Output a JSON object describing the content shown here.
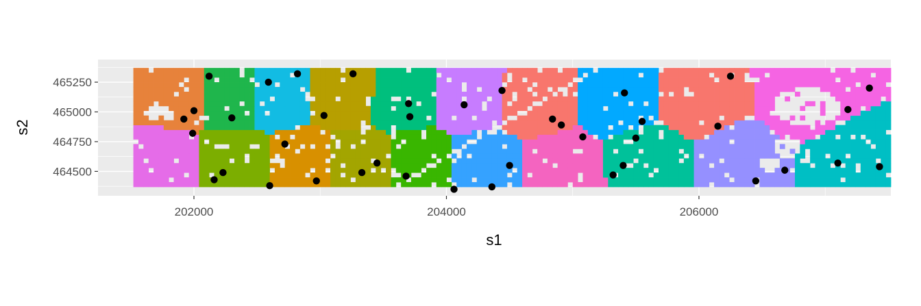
{
  "chart_data": {
    "type": "scatter",
    "title": "",
    "xlabel": "s1",
    "ylabel": "s2",
    "xlim": [
      201240,
      207520
    ],
    "ylim": [
      464295,
      465440
    ],
    "x_ticks": [
      202000,
      204000,
      206000
    ],
    "x_tick_labels": [
      "202000",
      "204000",
      "206000"
    ],
    "y_ticks": [
      464500,
      464750,
      465000,
      465250
    ],
    "y_tick_labels": [
      "464500",
      "464750",
      "465000",
      "465250"
    ],
    "panel_background": "#ebebeb",
    "grid": true,
    "legend": "none",
    "raster_extent": {
      "x": [
        201520,
        207520
      ],
      "y": [
        464370,
        465340
      ]
    },
    "cell_size": 40,
    "point_color": "#000000",
    "zones": [
      {
        "cx": 201880,
        "cy": 465160,
        "color": "#E7823B"
      },
      {
        "cx": 202280,
        "cy": 465140,
        "color": "#1FB64C"
      },
      {
        "cx": 202680,
        "cy": 465160,
        "color": "#12BCE3"
      },
      {
        "cx": 203180,
        "cy": 465160,
        "color": "#B79F00"
      },
      {
        "cx": 203660,
        "cy": 465140,
        "color": "#00BF7D"
      },
      {
        "cx": 204180,
        "cy": 465120,
        "color": "#C77CFF"
      },
      {
        "cx": 204700,
        "cy": 465080,
        "color": "#F8766D"
      },
      {
        "cx": 205380,
        "cy": 465120,
        "color": "#02A9FF"
      },
      {
        "cx": 206000,
        "cy": 465100,
        "color": "#F8766D"
      },
      {
        "cx": 206850,
        "cy": 465120,
        "color": "#F564E3"
      },
      {
        "cx": 201750,
        "cy": 464560,
        "color": "#E56CE8"
      },
      {
        "cx": 202330,
        "cy": 464570,
        "color": "#7CAE00"
      },
      {
        "cx": 202840,
        "cy": 464560,
        "color": "#D89000"
      },
      {
        "cx": 203300,
        "cy": 464560,
        "color": "#A3A500"
      },
      {
        "cx": 203780,
        "cy": 464560,
        "color": "#39B600"
      },
      {
        "cx": 204300,
        "cy": 464560,
        "color": "#35A2FF"
      },
      {
        "cx": 204900,
        "cy": 464540,
        "color": "#F464C0"
      },
      {
        "cx": 205600,
        "cy": 464590,
        "color": "#00C19A"
      },
      {
        "cx": 206300,
        "cy": 464580,
        "color": "#9590FF"
      },
      {
        "cx": 207200,
        "cy": 464580,
        "color": "#00BFC4"
      }
    ],
    "points": [
      [
        202120,
        465300
      ],
      [
        202590,
        465250
      ],
      [
        202820,
        465320
      ],
      [
        203260,
        465320
      ],
      [
        201920,
        464940
      ],
      [
        202000,
        465010
      ],
      [
        201990,
        464820
      ],
      [
        202300,
        464950
      ],
      [
        203030,
        464970
      ],
      [
        203700,
        465070
      ],
      [
        203710,
        464960
      ],
      [
        204140,
        465060
      ],
      [
        204440,
        465180
      ],
      [
        204840,
        464940
      ],
      [
        204910,
        464890
      ],
      [
        205080,
        464790
      ],
      [
        205410,
        465160
      ],
      [
        205550,
        464920
      ],
      [
        205500,
        464780
      ],
      [
        206250,
        465300
      ],
      [
        206150,
        464880
      ],
      [
        207180,
        465020
      ],
      [
        207350,
        465200
      ],
      [
        202720,
        464730
      ],
      [
        202160,
        464430
      ],
      [
        202230,
        464490
      ],
      [
        202600,
        464380
      ],
      [
        202970,
        464420
      ],
      [
        203330,
        464490
      ],
      [
        203450,
        464570
      ],
      [
        203680,
        464460
      ],
      [
        204060,
        464350
      ],
      [
        204360,
        464370
      ],
      [
        204500,
        464550
      ],
      [
        205320,
        464470
      ],
      [
        205400,
        464550
      ],
      [
        206450,
        464420
      ],
      [
        206680,
        464510
      ],
      [
        207100,
        464570
      ],
      [
        207430,
        464540
      ]
    ]
  }
}
